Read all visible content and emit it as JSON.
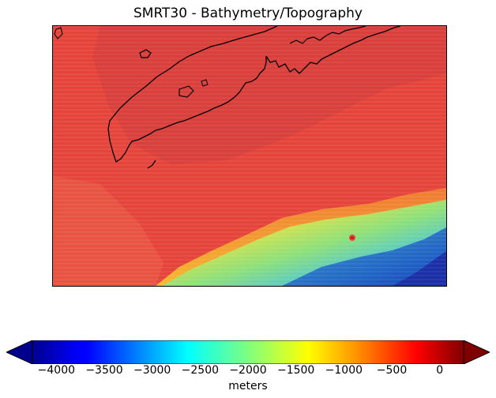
{
  "title": "SMRT30 - Bathymetry/Topography",
  "colorbar": {
    "label": "meters",
    "ticks": [
      "−4000",
      "−3500",
      "−3000",
      "−2500",
      "−2000",
      "−1500",
      "−1000",
      "−500",
      "0"
    ],
    "tick_values": [
      -4000,
      -3500,
      -3000,
      -2500,
      -2000,
      -1500,
      -1000,
      -500,
      0
    ],
    "min": -4250,
    "max": 250,
    "extend": "both",
    "colormap": "jet"
  },
  "colors": {
    "land_and_shelf": "#e5443b",
    "coastline": "#000000",
    "deep_water": "#1540b8"
  }
}
